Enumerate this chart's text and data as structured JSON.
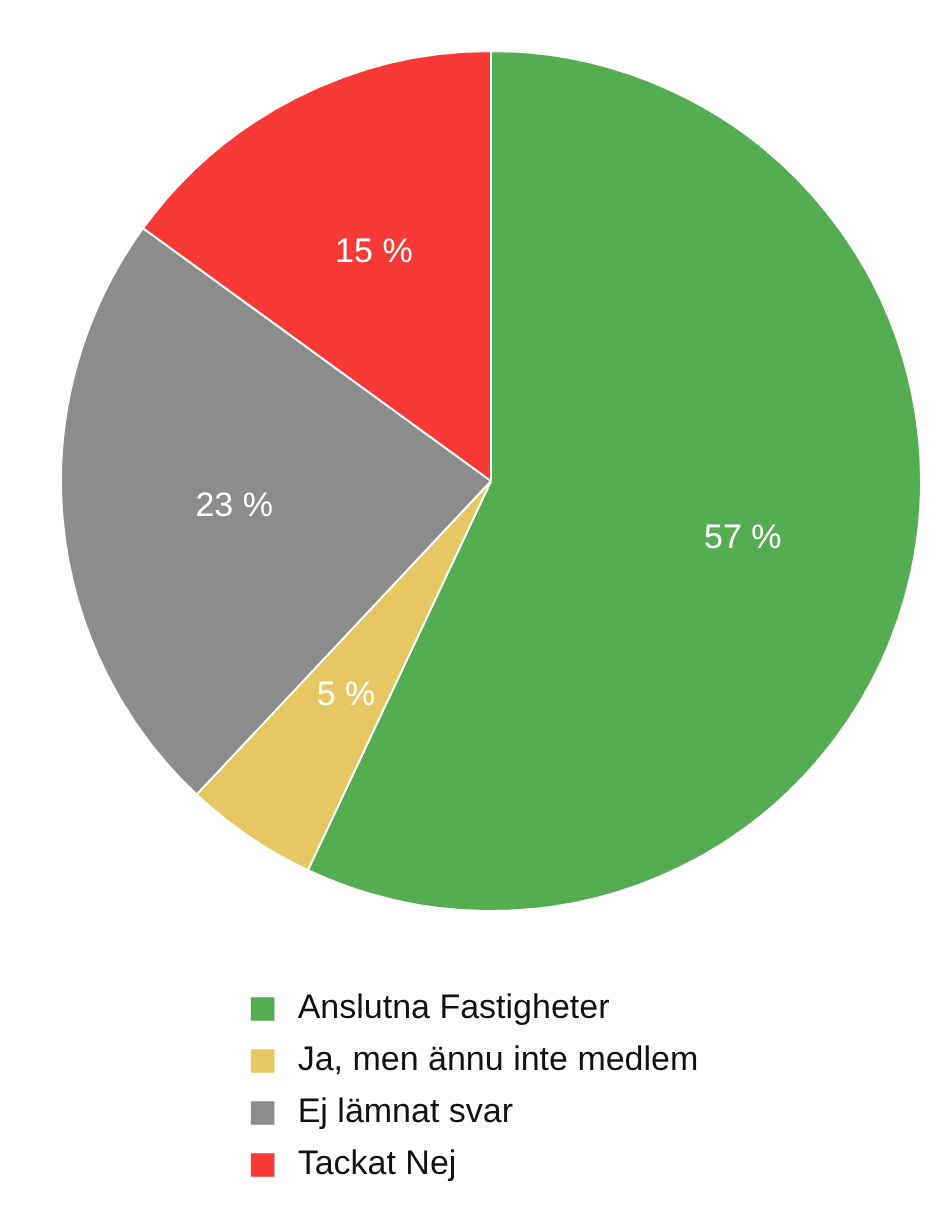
{
  "chart_data": {
    "type": "pie",
    "categories": [
      "Anslutna Fastigheter",
      "Ja, men ännu inte medlem",
      "Ej lämnat svar",
      "Tackat Nej"
    ],
    "values": [
      57,
      5,
      23,
      15
    ],
    "value_labels": [
      "57 %",
      "5 %",
      "23 %",
      "15 %"
    ],
    "colors": [
      "#54ad50",
      "#e6c862",
      "#8c8c8c",
      "#f73a36"
    ],
    "legend": "bottom"
  }
}
